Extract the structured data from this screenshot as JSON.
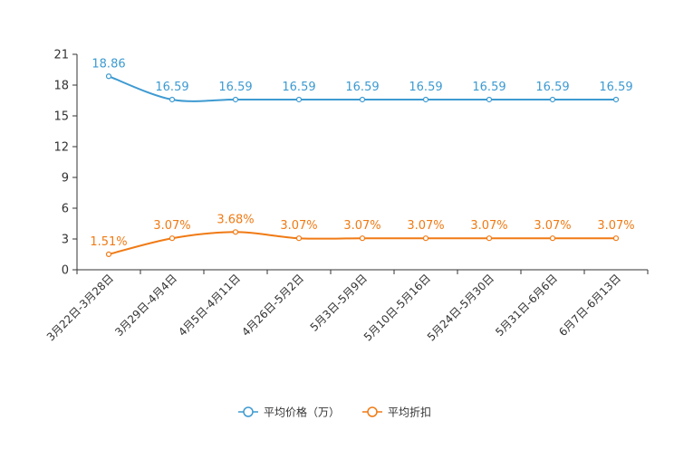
{
  "chart_data": {
    "type": "line",
    "categories": [
      "3月22日-3月28日",
      "3月29日-4月4日",
      "4月5日-4月11日",
      "4月26日-5月2日",
      "5月3日-5月9日",
      "5月10日-5月16日",
      "5月24日-5月30日",
      "5月31日-6月6日",
      "6月7日-6月13日"
    ],
    "ylim": [
      0,
      21
    ],
    "yticks": [
      0,
      3,
      6,
      9,
      12,
      15,
      18,
      21
    ],
    "grid": false,
    "legend": "bottom-center",
    "series": [
      {
        "name": "平均价格（万）",
        "color": "#3d9ad1",
        "values": [
          18.86,
          16.59,
          16.59,
          16.59,
          16.59,
          16.59,
          16.59,
          16.59,
          16.59
        ],
        "labels": [
          "18.86",
          "16.59",
          "16.59",
          "16.59",
          "16.59",
          "16.59",
          "16.59",
          "16.59",
          "16.59"
        ]
      },
      {
        "name": "平均折扣",
        "color": "#f07a14",
        "values": [
          1.51,
          3.07,
          3.68,
          3.07,
          3.07,
          3.07,
          3.07,
          3.07,
          3.07
        ],
        "labels": [
          "1.51%",
          "3.07%",
          "3.68%",
          "3.07%",
          "3.07%",
          "3.07%",
          "3.07%",
          "3.07%",
          "3.07%"
        ]
      }
    ]
  }
}
